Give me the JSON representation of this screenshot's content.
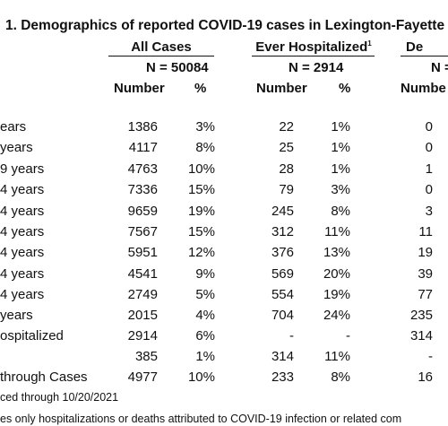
{
  "title": "1. Demographics of reported COVID-19 cases in Lexington-Fayette C",
  "groups": {
    "all_cases": "All Cases",
    "ever_hospitalized": "Ever Hospitalized",
    "ever_hospitalized_sup": "1",
    "deaths": "De"
  },
  "totals": {
    "all_cases": "N =  50084",
    "ever_hospitalized": "N = 2914",
    "deaths": "N ="
  },
  "col_headers": {
    "number_1": "Number",
    "pct_1": "%",
    "number_2": "Number",
    "pct_2": "%",
    "number_3": "Numbe"
  },
  "rows": [
    {
      "label": "ears",
      "n1": "1386",
      "p1": "3%",
      "n2": "22",
      "p2": "1%",
      "n3": "0"
    },
    {
      "label": "years",
      "n1": "4117",
      "p1": "8%",
      "n2": "25",
      "p2": "1%",
      "n3": "0"
    },
    {
      "label": "9 years",
      "n1": "4763",
      "p1": "10%",
      "n2": "28",
      "p2": "1%",
      "n3": "1"
    },
    {
      "label": "4 years",
      "n1": "7336",
      "p1": "15%",
      "n2": "79",
      "p2": "3%",
      "n3": "0"
    },
    {
      "label": "4 years",
      "n1": "9659",
      "p1": "19%",
      "n2": "245",
      "p2": "8%",
      "n3": "3"
    },
    {
      "label": "4 years",
      "n1": "7567",
      "p1": "15%",
      "n2": "312",
      "p2": "11%",
      "n3": "11"
    },
    {
      "label": "4 years",
      "n1": "5951",
      "p1": "12%",
      "n2": "376",
      "p2": "13%",
      "n3": "19"
    },
    {
      "label": "4 years",
      "n1": "4541",
      "p1": "9%",
      "n2": "569",
      "p2": "20%",
      "n3": "39"
    },
    {
      "label": "4 years",
      "n1": "2749",
      "p1": "5%",
      "n2": "554",
      "p2": "19%",
      "n3": "77"
    },
    {
      "label": "years",
      "n1": "2015",
      "p1": "4%",
      "n2": "704",
      "p2": "24%",
      "n3": "235"
    },
    {
      "label": "ospitalized",
      "n1": "2914",
      "p1": "6%",
      "n2": "-",
      "p2": "-",
      "n3": "314"
    },
    {
      "label": "",
      "n1": "385",
      "p1": "1%",
      "n2": "314",
      "p2": "11%",
      "n3": "-"
    },
    {
      "label": "through Cases",
      "n1": "4977",
      "p1": "10%",
      "n2": "233",
      "p2": "8%",
      "n3": "16"
    }
  ],
  "footnotes": {
    "line1": "ced through 10/20/2021",
    "line2": "es only hospitalizations or deaths attributed to COVID-19 infection or related com"
  }
}
